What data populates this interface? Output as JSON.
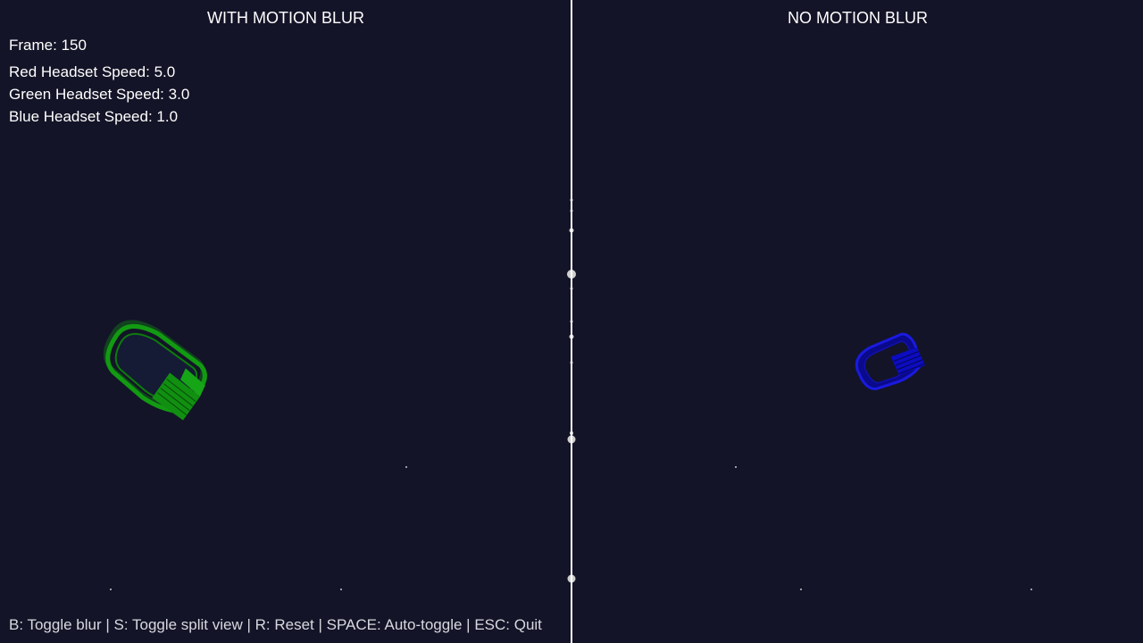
{
  "views": {
    "left_title": "WITH MOTION BLUR",
    "right_title": "NO MOTION BLUR"
  },
  "hud": {
    "frame_label": "Frame:",
    "frame_value": "150",
    "red_label": "Red Headset Speed:",
    "red_value": "5.0",
    "green_label": "Green Headset Speed:",
    "green_value": "3.0",
    "blue_label": "Blue Headset Speed:",
    "blue_value": "1.0"
  },
  "controls": {
    "text": "B: Toggle blur | S: Toggle split view | R: Reset | SPACE: Auto-toggle | ESC: Quit"
  },
  "colors": {
    "background": "#131427",
    "divider": "#ffffff",
    "green_headset": "#119911",
    "blue_headset": "#0a0ad0",
    "text": "#ffffff"
  },
  "icons": {
    "green_headset": "vr-headset-icon",
    "blue_headset": "vr-headset-icon"
  }
}
